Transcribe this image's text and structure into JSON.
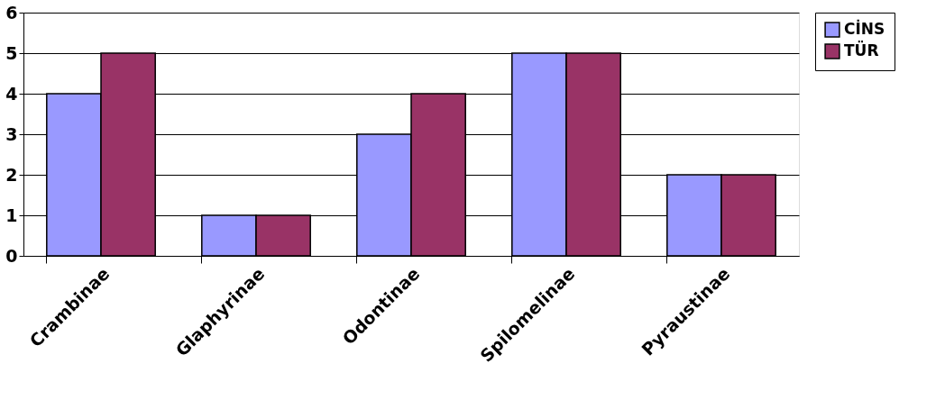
{
  "chart_data": {
    "type": "bar",
    "categories": [
      "Crambinae",
      "Glaphyrinae",
      "Odontinae",
      "Spilomelinae",
      "Pyraustinae"
    ],
    "series": [
      {
        "name": "CİNS",
        "color": "#9999ff",
        "values": [
          4,
          1,
          3,
          5,
          2
        ]
      },
      {
        "name": "TÜR",
        "color": "#993366",
        "values": [
          5,
          1,
          4,
          5,
          2
        ]
      }
    ],
    "ylim": [
      0,
      6
    ],
    "yticks": [
      0,
      1,
      2,
      3,
      4,
      5,
      6
    ],
    "grid": "y",
    "legend": "right"
  }
}
